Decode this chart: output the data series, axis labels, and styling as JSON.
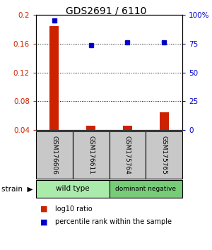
{
  "title": "GDS2691 / 6110",
  "samples": [
    "GSM176606",
    "GSM176611",
    "GSM175764",
    "GSM175765"
  ],
  "log10_ratio": [
    0.185,
    0.046,
    0.046,
    0.065
  ],
  "percentile_rank": [
    95,
    74,
    76,
    76
  ],
  "group_configs": [
    {
      "label": "wild type",
      "start": 0,
      "end": 2,
      "color": "#aaeaaa"
    },
    {
      "label": "dominant negative",
      "start": 2,
      "end": 4,
      "color": "#77cc77"
    }
  ],
  "ylim_left": [
    0.04,
    0.2
  ],
  "ylim_right": [
    0,
    100
  ],
  "yticks_left": [
    0.04,
    0.08,
    0.12,
    0.16,
    0.2
  ],
  "ytick_labels_left": [
    "0.04",
    "0.08",
    "0.12",
    "0.16",
    "0.2"
  ],
  "yticks_right": [
    0,
    25,
    50,
    75,
    100
  ],
  "ytick_labels_right": [
    "0",
    "25",
    "50",
    "75",
    "100%"
  ],
  "bar_color": "#cc2200",
  "dot_color": "#0000cc",
  "background_color": "#ffffff",
  "label_area_color": "#c8c8c8",
  "legend_log10_label": "log10 ratio",
  "legend_pct_label": "percentile rank within the sample",
  "strain_label": "strain"
}
